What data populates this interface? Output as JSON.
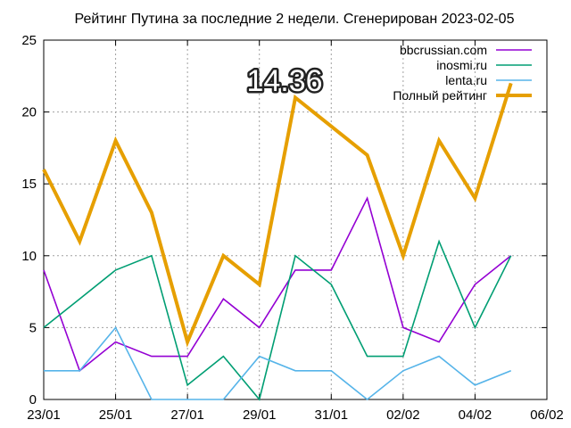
{
  "chart_data": {
    "type": "line",
    "title": "Рейтинг Путина за последние 2 недели. Сгенерирован 2023-02-05",
    "xlabel": "",
    "ylabel": "",
    "ylim": [
      0,
      25
    ],
    "yticks": [
      0,
      5,
      10,
      15,
      20,
      25
    ],
    "xlim": [
      "23/01",
      "06/02"
    ],
    "xticks": [
      "23/01",
      "25/01",
      "27/01",
      "29/01",
      "31/01",
      "02/02",
      "04/02",
      "06/02"
    ],
    "x": [
      "23/01",
      "24/01",
      "25/01",
      "26/01",
      "27/01",
      "28/01",
      "29/01",
      "30/01",
      "31/01",
      "01/02",
      "02/02",
      "03/02",
      "04/02",
      "05/02"
    ],
    "grid": true,
    "legend_position": "top-right",
    "series": [
      {
        "name": "bbcrussian.com",
        "color": "#9400d3",
        "values": [
          9,
          2,
          4,
          3,
          3,
          7,
          5,
          9,
          9,
          14,
          5,
          4,
          8,
          10
        ]
      },
      {
        "name": "inosmi.ru",
        "color": "#009e73",
        "values": [
          5,
          7,
          9,
          10,
          1,
          3,
          0,
          10,
          8,
          3,
          3,
          11,
          5,
          10
        ]
      },
      {
        "name": "lenta.ru",
        "color": "#56b4e9",
        "values": [
          2,
          2,
          5,
          0,
          0,
          0,
          3,
          2,
          2,
          0,
          2,
          3,
          1,
          2
        ]
      },
      {
        "name": "Полный рейтинг",
        "color": "#e69f00",
        "values": [
          16,
          11,
          18,
          13,
          4,
          10,
          8,
          21,
          19,
          17,
          10,
          18,
          14,
          22
        ]
      }
    ],
    "annotations": [
      {
        "text": "14.36",
        "x": "30/01",
        "y": 21.6
      }
    ]
  }
}
